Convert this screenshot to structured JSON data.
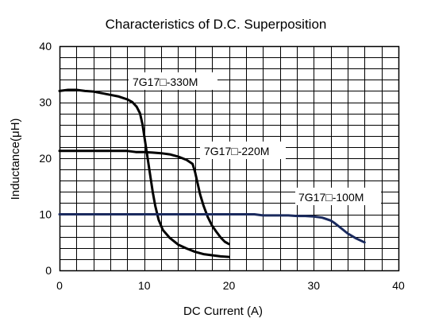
{
  "chart_data": {
    "type": "line",
    "title": "Characteristics of D.C. Superposition",
    "xlabel": "DC Current (A)",
    "ylabel": "Inductance(μH)",
    "xlim": [
      0,
      40
    ],
    "ylim": [
      0,
      40
    ],
    "x_major_ticks": [
      0,
      10,
      20,
      30,
      40
    ],
    "y_major_ticks": [
      0,
      10,
      20,
      30,
      40
    ],
    "x_grid_step": 2,
    "y_grid_step": 2,
    "grid": true,
    "series": [
      {
        "name": "7G17□-330M",
        "color": "#000000",
        "x": [
          0,
          1,
          2,
          3,
          4,
          5,
          6,
          7,
          8,
          8.6,
          9.1,
          9.5,
          9.8,
          10.1,
          10.4,
          10.7,
          11.0,
          11.3,
          11.7,
          12.2,
          13,
          14,
          15,
          16,
          17,
          18,
          19,
          20
        ],
        "values": [
          32,
          32.2,
          32.2,
          32,
          31.9,
          31.6,
          31.3,
          31,
          30.5,
          30,
          29.2,
          28,
          26,
          23,
          20,
          17,
          14,
          11.5,
          9,
          7.2,
          5.8,
          4.6,
          3.9,
          3.3,
          2.9,
          2.7,
          2.5,
          2.4
        ]
      },
      {
        "name": "7G17□-220M",
        "color": "#000000",
        "x": [
          0,
          2,
          4,
          6,
          8,
          9,
          10,
          11,
          12,
          13,
          14,
          15,
          15.7,
          16,
          16.3,
          16.6,
          17,
          17.5,
          18,
          18.5,
          19,
          19.5,
          20
        ],
        "values": [
          21.3,
          21.3,
          21.3,
          21.3,
          21.3,
          21.1,
          21.1,
          21.0,
          20.9,
          20.7,
          20.3,
          19.7,
          19.0,
          17.5,
          15.5,
          13.5,
          11.5,
          9.5,
          8.0,
          6.9,
          5.9,
          5.1,
          4.7
        ]
      },
      {
        "name": "7G17□-100M",
        "color": "#1a2a5e",
        "x": [
          0,
          5,
          10,
          15,
          20,
          23,
          24,
          25,
          27,
          28,
          29,
          30,
          31,
          32,
          32.5,
          33,
          34,
          35,
          36
        ],
        "values": [
          10,
          10,
          10,
          10,
          10,
          10,
          9.8,
          9.8,
          9.8,
          9.7,
          9.7,
          9.6,
          9.4,
          8.9,
          8.4,
          7.8,
          6.6,
          5.7,
          5.0
        ]
      }
    ],
    "annotations": [
      "7G17□-330M",
      "7G17□-220M",
      "7G17□-100M"
    ]
  }
}
